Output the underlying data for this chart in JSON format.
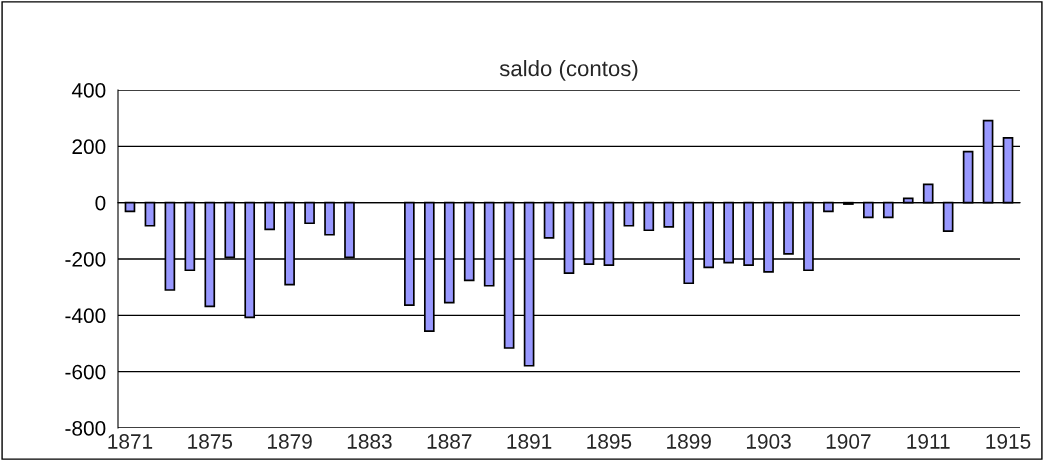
{
  "chart_data": {
    "type": "bar",
    "title": "saldo (contos)",
    "categories": [
      "1871",
      null,
      null,
      null,
      "1875",
      null,
      null,
      null,
      "1879",
      null,
      null,
      null,
      "1883",
      null,
      null,
      null,
      "1887",
      null,
      null,
      null,
      "1891",
      null,
      null,
      null,
      "1895",
      null,
      null,
      null,
      "1899",
      null,
      null,
      null,
      "1903",
      null,
      null,
      null,
      "1907",
      null,
      null,
      null,
      "1911",
      null,
      null,
      null,
      "1915"
    ],
    "values": [
      -31,
      -82,
      -310,
      -240,
      -368,
      -194,
      -407,
      -95,
      -291,
      -73,
      -114,
      -194,
      null,
      null,
      -364,
      -456,
      -355,
      -276,
      -295,
      -516,
      -579,
      -125,
      -250,
      -218,
      -222,
      -82,
      -98,
      -86,
      -286,
      -230,
      -213,
      -222,
      -246,
      -182,
      -240,
      -31,
      -5,
      -52,
      -52,
      15,
      65,
      -101,
      181,
      291,
      230
    ],
    "color": "#9999ff",
    "ylim": [
      -800,
      400
    ],
    "yticks": [
      -800,
      -600,
      -400,
      -200,
      0,
      200,
      400
    ],
    "grid": "y",
    "legend": false
  }
}
